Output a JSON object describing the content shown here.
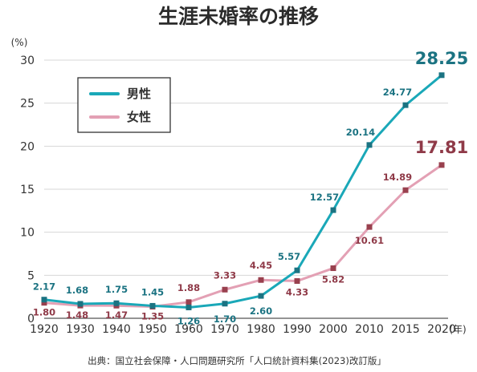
{
  "chart_data": {
    "type": "line",
    "title": "生涯未婚率の推移",
    "y_unit": "(%)",
    "x_unit": "(年)",
    "ylim": [
      0,
      30
    ],
    "yticks": [
      0,
      5,
      10,
      15,
      20,
      25,
      30
    ],
    "x": [
      "1920",
      "1930",
      "1940",
      "1950",
      "1960",
      "1970",
      "1980",
      "1990",
      "2000",
      "2010",
      "2015",
      "2020"
    ],
    "grid": true,
    "legend_placement": "top-left",
    "series": [
      {
        "name": "男性",
        "color": "#1aa8b8",
        "label_color": "#1b7382",
        "values": [
          2.17,
          1.68,
          1.75,
          1.45,
          1.26,
          1.7,
          2.6,
          5.57,
          12.57,
          20.14,
          24.77,
          28.25
        ],
        "labels": [
          "2.17",
          "1.68",
          "1.75",
          "1.45",
          "1.26",
          "1.70",
          "2.60",
          "5.57",
          "12.57",
          "20.14",
          "24.77",
          "28.25"
        ]
      },
      {
        "name": "女性",
        "color": "#e3a0b4",
        "label_color": "#8f3a48",
        "marker_color": "#99404e",
        "values": [
          1.8,
          1.48,
          1.47,
          1.35,
          1.88,
          3.33,
          4.45,
          4.33,
          5.82,
          10.61,
          14.89,
          17.81
        ],
        "labels": [
          "1.80",
          "1.48",
          "1.47",
          "1.35",
          "1.88",
          "3.33",
          "4.45",
          "4.33",
          "5.82",
          "10.61",
          "14.89",
          "17.81"
        ]
      }
    ],
    "source": "出典：国立社会保障・人口問題研究所「人口統計資料集(2023)改訂版」"
  }
}
